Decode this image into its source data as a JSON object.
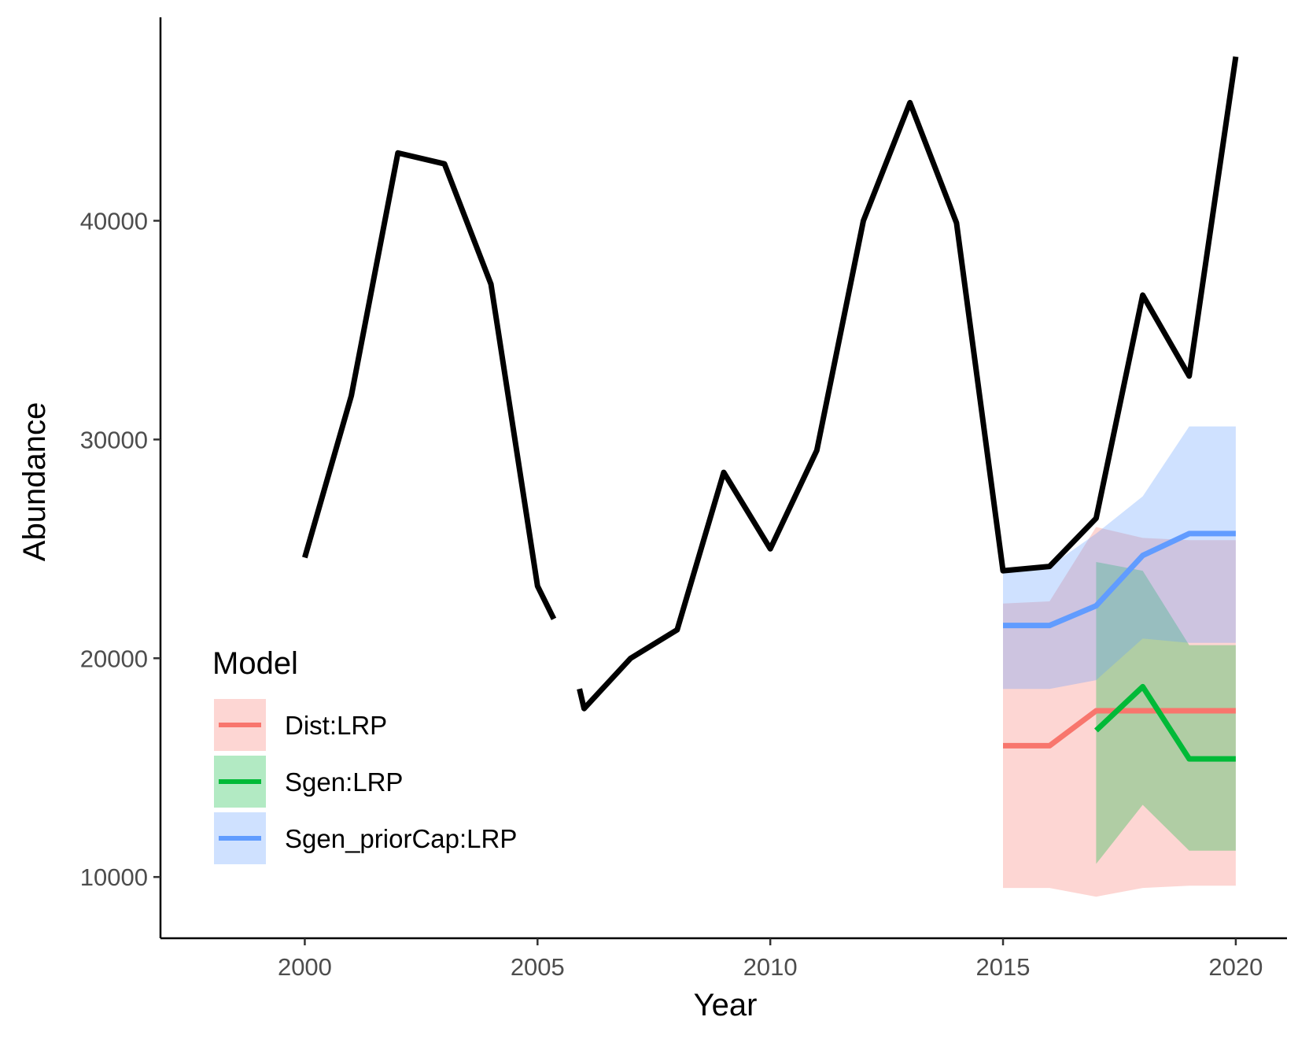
{
  "chart_data": {
    "type": "line",
    "xlabel": "Year",
    "ylabel": "Abundance",
    "xlim": [
      1996.9,
      2021.1
    ],
    "ylim": [
      7200,
      49300
    ],
    "x_ticks": [
      2000,
      2005,
      2010,
      2015,
      2020
    ],
    "y_ticks": [
      10000,
      20000,
      30000,
      40000
    ],
    "x_tick_labels": [
      "2000",
      "2005",
      "2010",
      "2015",
      "2020"
    ],
    "y_tick_labels": [
      "10000",
      "20000",
      "30000",
      "40000"
    ],
    "grid": false,
    "legend": {
      "title": "Model",
      "placement": "bottom-left",
      "entries": [
        {
          "label": "Dist:LRP",
          "color": "#F8766D"
        },
        {
          "label": "Sgen:LRP",
          "color": "#00BA38"
        },
        {
          "label": "Sgen_priorCap:LRP",
          "color": "#619CFF"
        }
      ]
    },
    "observed": {
      "color": "#000000",
      "segments": [
        [
          [
            2000,
            24600
          ],
          [
            2001,
            32000
          ],
          [
            2002,
            43100
          ],
          [
            2003,
            42600
          ],
          [
            2004,
            37100
          ],
          [
            2005,
            23300
          ],
          [
            2005.35,
            21800
          ]
        ],
        [
          [
            2005.9,
            18600
          ],
          [
            2006,
            17700
          ],
          [
            2007,
            20000
          ],
          [
            2008,
            21300
          ],
          [
            2009,
            28500
          ],
          [
            2010,
            25000
          ],
          [
            2011,
            29500
          ],
          [
            2012,
            40000
          ],
          [
            2013,
            45400
          ],
          [
            2014,
            39900
          ],
          [
            2015,
            24000
          ],
          [
            2016,
            24200
          ],
          [
            2017,
            26400
          ],
          [
            2018,
            36600
          ],
          [
            2019,
            32900
          ],
          [
            2020,
            47500
          ]
        ]
      ]
    },
    "series": [
      {
        "name": "Dist:LRP",
        "color": "#F8766D",
        "x": [
          2015,
          2016,
          2017,
          2018,
          2019,
          2020
        ],
        "values": [
          16000,
          16000,
          17600,
          17600,
          17600,
          17600
        ],
        "lower": [
          9500,
          9500,
          9100,
          9500,
          9600,
          9600
        ],
        "upper": [
          22500,
          22600,
          26000,
          25500,
          25400,
          25400
        ]
      },
      {
        "name": "Sgen:LRP",
        "color": "#00BA38",
        "x": [
          2017,
          2018,
          2019,
          2020
        ],
        "values": [
          16700,
          18700,
          15400,
          15400
        ],
        "lower": [
          10600,
          13300,
          11200,
          11200
        ],
        "upper": [
          24400,
          24000,
          20600,
          20600
        ]
      },
      {
        "name": "Sgen_priorCap:LRP",
        "color": "#619CFF",
        "x": [
          2015,
          2016,
          2017,
          2018,
          2019,
          2020
        ],
        "values": [
          21500,
          21500,
          22400,
          24700,
          25700,
          25700
        ],
        "lower": [
          18600,
          18600,
          19000,
          20900,
          20700,
          20700
        ],
        "upper": [
          24000,
          24200,
          25700,
          27400,
          30600,
          30600
        ]
      }
    ]
  }
}
